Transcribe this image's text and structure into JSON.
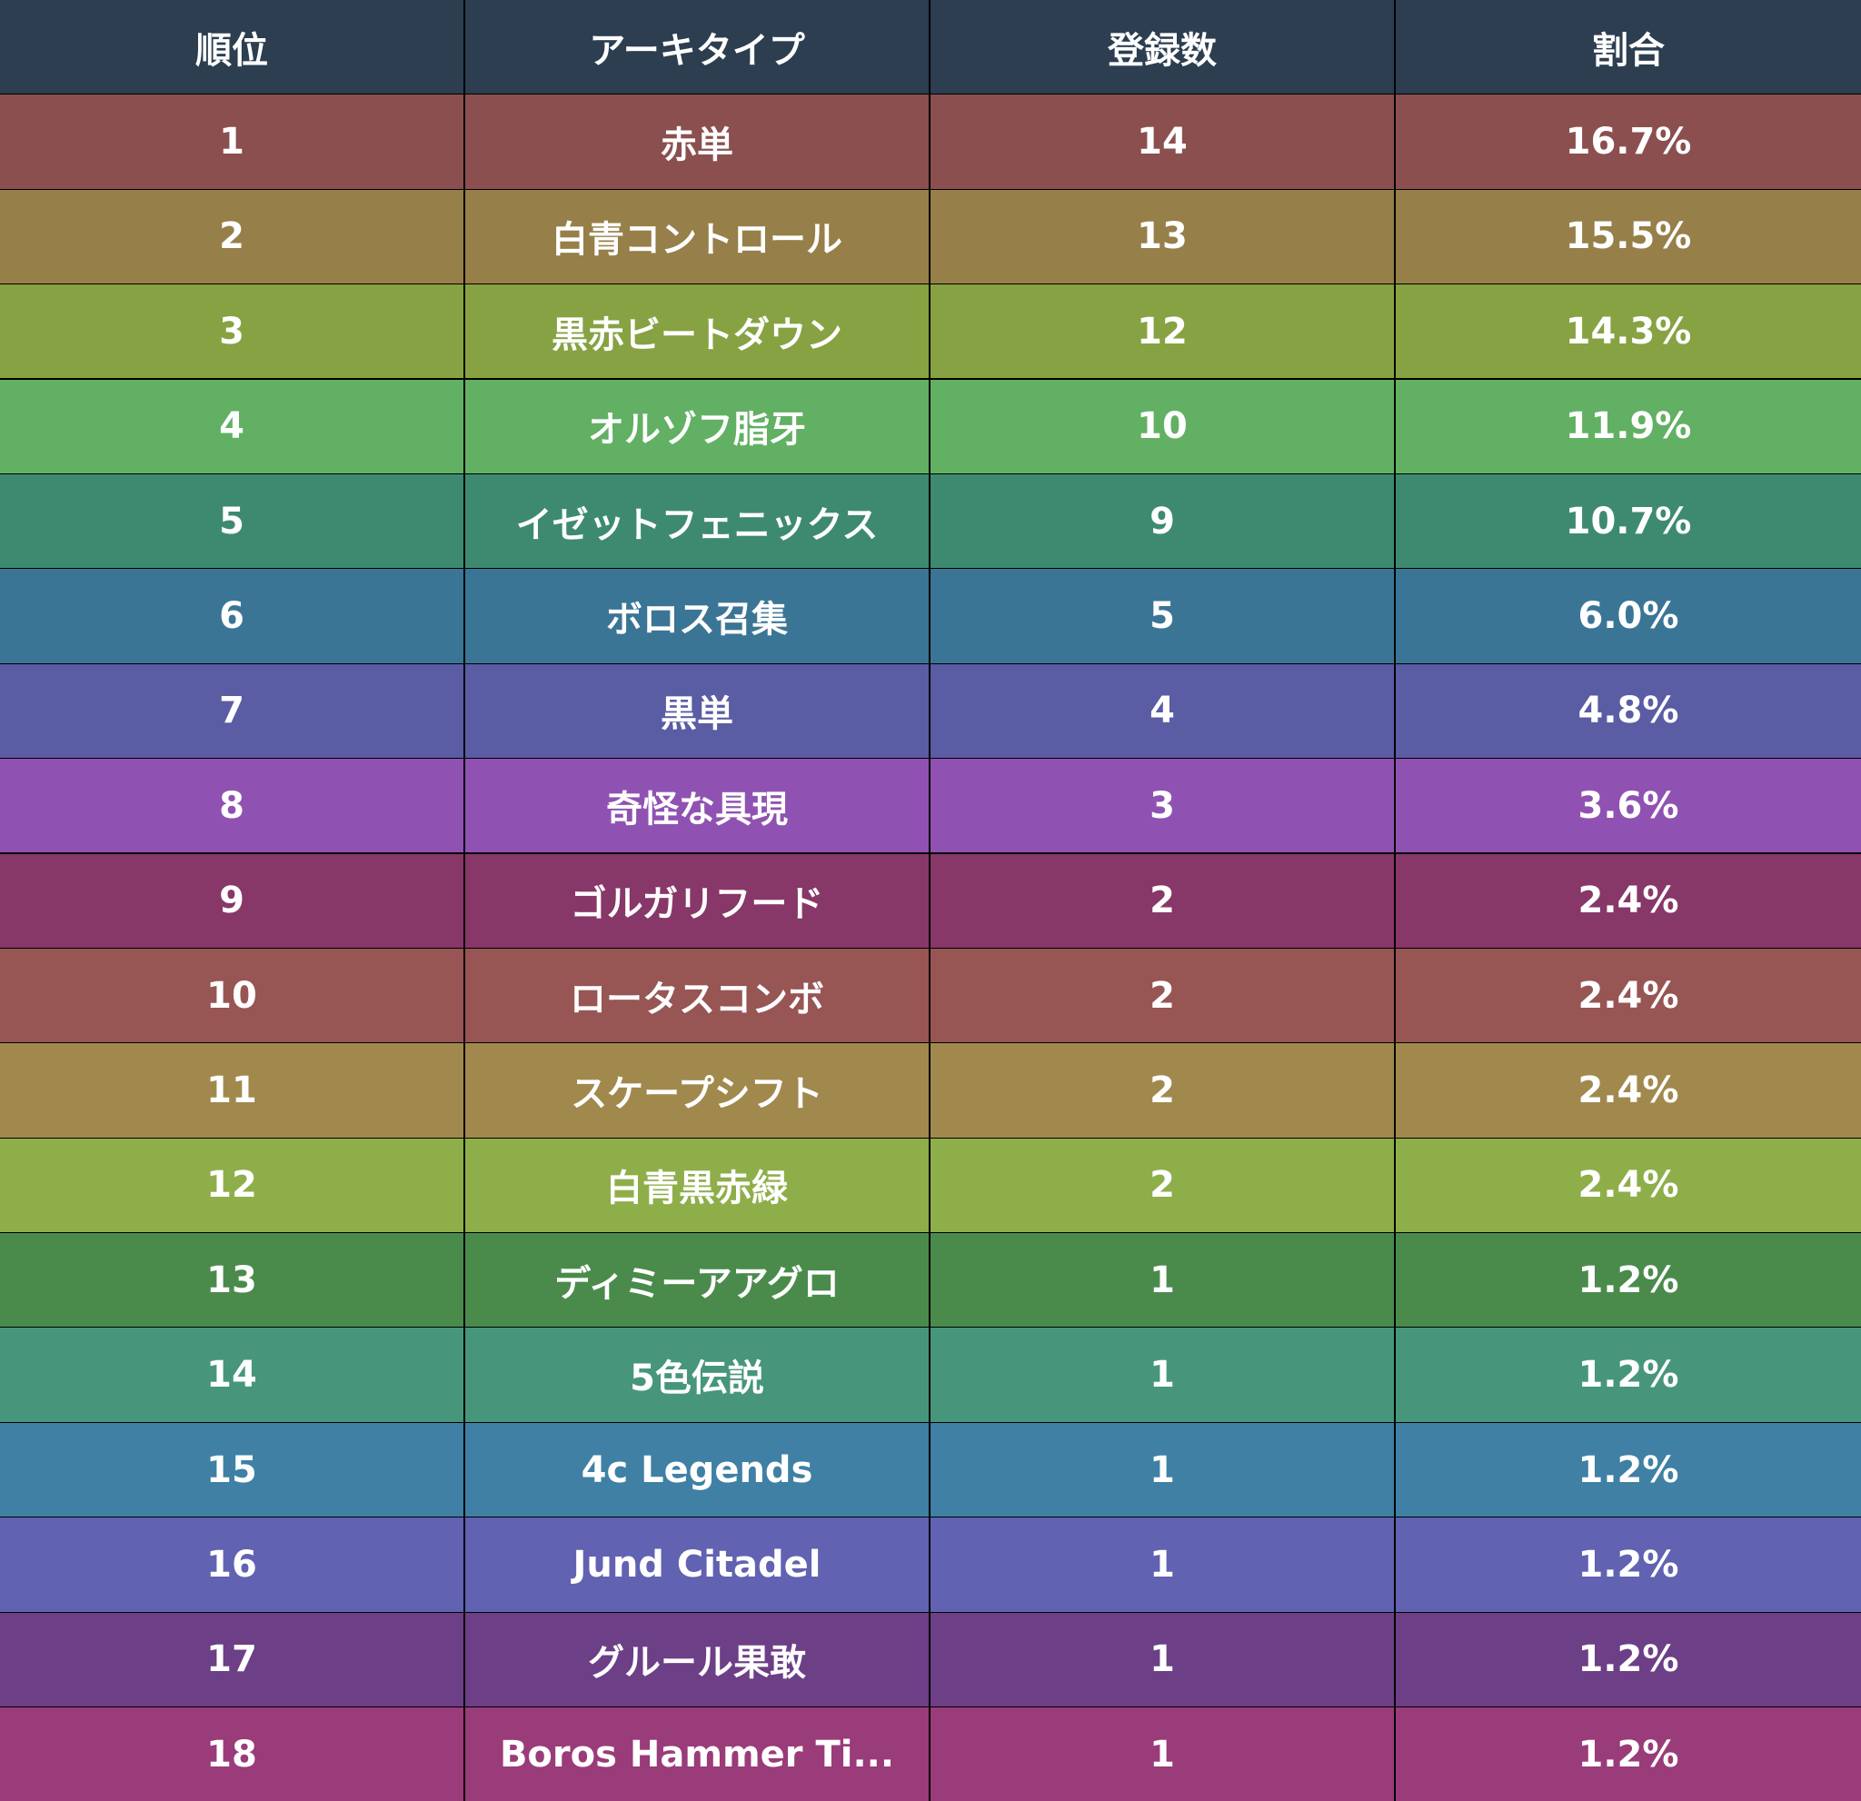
{
  "chart_data": {
    "type": "table",
    "columns": [
      "順位",
      "アーキタイプ",
      "登録数",
      "割合"
    ],
    "header_color": "#2c3e50",
    "text_color": "#ffffff",
    "border_color": "#000000",
    "rows": [
      {
        "rank": "1",
        "archetype": "赤単",
        "count": "14",
        "share": "16.7%",
        "color": "#8b4f4f"
      },
      {
        "rank": "2",
        "archetype": "白青コントロール",
        "count": "13",
        "share": "15.5%",
        "color": "#967f48"
      },
      {
        "rank": "3",
        "archetype": "黒赤ビートダウン",
        "count": "12",
        "share": "14.3%",
        "color": "#87a242"
      },
      {
        "rank": "4",
        "archetype": "オルゾフ脂牙",
        "count": "10",
        "share": "11.9%",
        "color": "#62b063"
      },
      {
        "rank": "5",
        "archetype": "イゼットフェニックス",
        "count": "9",
        "share": "10.7%",
        "color": "#3e8a70"
      },
      {
        "rank": "6",
        "archetype": "ボロス召集",
        "count": "5",
        "share": "6.0%",
        "color": "#3b7596"
      },
      {
        "rank": "7",
        "archetype": "黒単",
        "count": "4",
        "share": "4.8%",
        "color": "#5a5ca4"
      },
      {
        "rank": "8",
        "archetype": "奇怪な具現",
        "count": "3",
        "share": "3.6%",
        "color": "#9052b2"
      },
      {
        "rank": "9",
        "archetype": "ゴルガリフード",
        "count": "2",
        "share": "2.4%",
        "color": "#873768"
      },
      {
        "rank": "10",
        "archetype": "ロータスコンボ",
        "count": "2",
        "share": "2.4%",
        "color": "#975554"
      },
      {
        "rank": "11",
        "archetype": "スケープシフト",
        "count": "2",
        "share": "2.4%",
        "color": "#a1894e"
      },
      {
        "rank": "12",
        "archetype": "白青黒赤緑",
        "count": "2",
        "share": "2.4%",
        "color": "#8eae4a"
      },
      {
        "rank": "13",
        "archetype": "ディミーアアグロ",
        "count": "1",
        "share": "1.2%",
        "color": "#4a8b4c"
      },
      {
        "rank": "14",
        "archetype": "5色伝説",
        "count": "1",
        "share": "1.2%",
        "color": "#47967c"
      },
      {
        "rank": "15",
        "archetype": "4c Legends",
        "count": "1",
        "share": "1.2%",
        "color": "#3f80a4"
      },
      {
        "rank": "16",
        "archetype": "Jund Citadel",
        "count": "1",
        "share": "1.2%",
        "color": "#6162b2"
      },
      {
        "rank": "17",
        "archetype": "グルール果敢",
        "count": "1",
        "share": "1.2%",
        "color": "#6c3f86"
      },
      {
        "rank": "18",
        "archetype": "Boros Hammer Ti...",
        "count": "1",
        "share": "1.2%",
        "color": "#9a3b7a"
      }
    ]
  }
}
